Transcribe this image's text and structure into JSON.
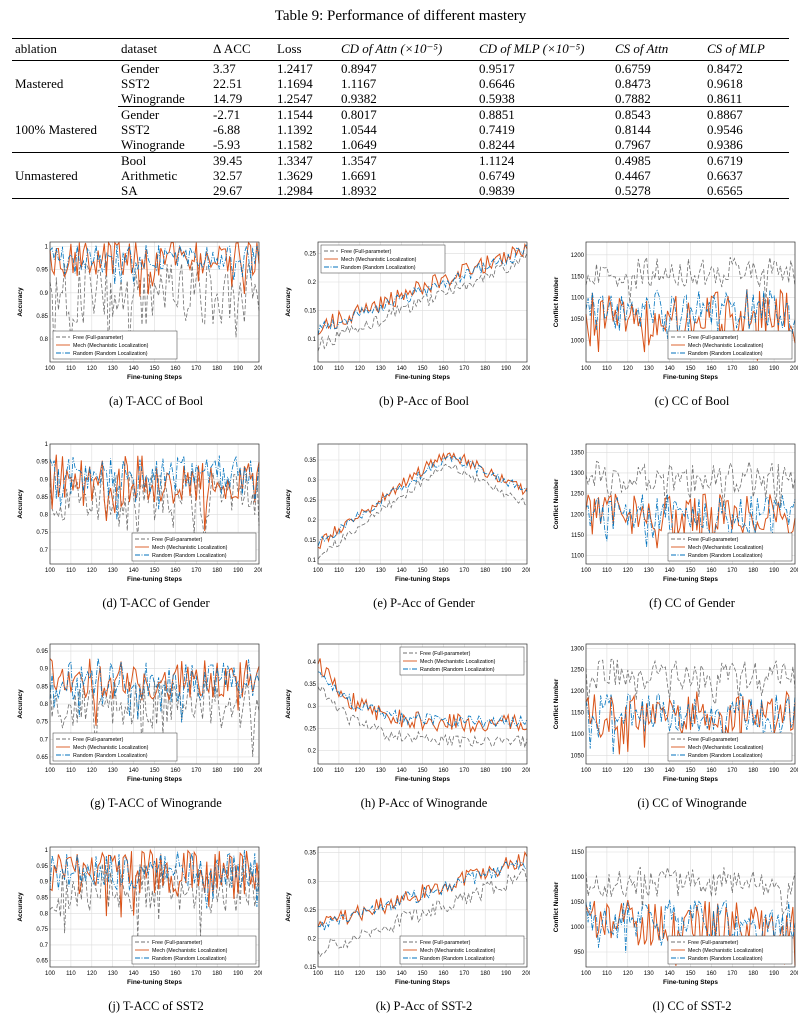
{
  "table": {
    "caption": "Table 9: Performance of different mastery",
    "headers": [
      "ablation",
      "dataset",
      "Δ ACC",
      "Loss",
      "CD of Attn (×10⁻⁵)",
      "CD of MLP (×10⁻⁵)",
      "CS of Attn",
      "CS of MLP"
    ],
    "groups": [
      {
        "name": "Mastered",
        "rows": [
          [
            "Gender",
            "3.37",
            "1.2417",
            "0.8947",
            "0.9517",
            "0.6759",
            "0.8472"
          ],
          [
            "SST2",
            "22.51",
            "1.1694",
            "1.1167",
            "0.6646",
            "0.8473",
            "0.9618"
          ],
          [
            "Winogrande",
            "14.79",
            "1.2547",
            "0.9382",
            "0.5938",
            "0.7882",
            "0.8611"
          ]
        ]
      },
      {
        "name": "100% Mastered",
        "rows": [
          [
            "Gender",
            "-2.71",
            "1.1544",
            "0.8017",
            "0.8851",
            "0.8543",
            "0.8867"
          ],
          [
            "SST2",
            "-6.88",
            "1.1392",
            "1.0544",
            "0.7419",
            "0.8144",
            "0.9546"
          ],
          [
            "Winogrande",
            "-5.93",
            "1.1582",
            "1.0649",
            "0.8244",
            "0.7967",
            "0.9386"
          ]
        ]
      },
      {
        "name": "Unmastered",
        "rows": [
          [
            "Bool",
            "39.45",
            "1.3347",
            "1.3547",
            "1.1124",
            "0.4985",
            "0.6719"
          ],
          [
            "Arithmetic",
            "32.57",
            "1.3629",
            "1.6691",
            "0.6749",
            "0.4467",
            "0.6637"
          ],
          [
            "SA",
            "29.67",
            "1.2984",
            "1.8932",
            "0.9839",
            "0.5278",
            "0.6565"
          ]
        ]
      }
    ]
  },
  "colors": {
    "free": "#707070",
    "mech": "#d95319",
    "random": "#0072bd"
  },
  "chart_data": [
    {
      "type": "line",
      "caption": "(a)  T-ACC of Bool",
      "xlabel": "Fine-tuning Steps",
      "ylabel": "Accuracy",
      "xlim": [
        100,
        200
      ],
      "ylim": [
        0.75,
        1.01
      ],
      "yticks": [
        "0.8",
        "0.85",
        "0.9",
        "0.95",
        "1"
      ],
      "grid": true,
      "legend": "bottom-left",
      "series": [
        {
          "name": "Free (Full-parameter)",
          "base": 0.9,
          "noise": 0.07
        },
        {
          "name": "Mech (Mechanistic Localization)",
          "base": 0.975,
          "noise": 0.04
        },
        {
          "name": "Random (Random Localization)",
          "base": 0.975,
          "noise": 0.03
        }
      ]
    },
    {
      "type": "line",
      "caption": "(b)  P-Acc of Bool",
      "xlabel": "Fine-tuning Steps",
      "ylabel": "Accuracy",
      "xlim": [
        100,
        200
      ],
      "ylim": [
        0.06,
        0.27
      ],
      "yticks": [
        "0.1",
        "0.15",
        "0.2",
        "0.25"
      ],
      "grid": true,
      "legend": "top-left",
      "series": [
        {
          "name": "Free (Full-parameter)",
          "start": 0.09,
          "end": 0.24,
          "noise": 0.012
        },
        {
          "name": "Mech (Mechanistic Localization)",
          "start": 0.12,
          "end": 0.26,
          "noise": 0.015
        },
        {
          "name": "Random (Random Localization)",
          "start": 0.115,
          "end": 0.255,
          "noise": 0.012
        }
      ]
    },
    {
      "type": "line",
      "caption": "(c)  CC of Bool",
      "xlabel": "Fine-tuning Steps",
      "ylabel": "Conflict Number",
      "xlim": [
        100,
        200
      ],
      "ylim": [
        950,
        1230
      ],
      "yticks": [
        "1000",
        "1050",
        "1100",
        "1150",
        "1200"
      ],
      "grid": true,
      "legend": "bottom-right",
      "series": [
        {
          "name": "Free (Full-parameter)",
          "base": 1160,
          "noise": 35
        },
        {
          "name": "Mech (Mechanistic Localization)",
          "base": 1065,
          "noise": 55
        },
        {
          "name": "Random (Random Localization)",
          "base": 1070,
          "noise": 50
        }
      ]
    },
    {
      "type": "line",
      "caption": "(d)  T-ACC of Gender",
      "xlabel": "Fine-tuning Steps",
      "ylabel": "Accuracy",
      "xlim": [
        100,
        200
      ],
      "ylim": [
        0.66,
        1.0
      ],
      "yticks": [
        "0.7",
        "0.75",
        "0.8",
        "0.85",
        "0.9",
        "0.95",
        "1"
      ],
      "grid": true,
      "legend": "bottom-right",
      "series": [
        {
          "name": "Free (Full-parameter)",
          "base": 0.84,
          "noise": 0.08
        },
        {
          "name": "Mech (Mechanistic Localization)",
          "base": 0.9,
          "noise": 0.07
        },
        {
          "name": "Random (Random Localization)",
          "base": 0.91,
          "noise": 0.06
        }
      ]
    },
    {
      "type": "line",
      "caption": "(e)  P-Acc of Gender",
      "xlabel": "Fine-tuning Steps",
      "ylabel": "Accuracy",
      "xlim": [
        100,
        200
      ],
      "ylim": [
        0.09,
        0.39
      ],
      "yticks": [
        "0.1",
        "0.15",
        "0.2",
        "0.25",
        "0.3",
        "0.35"
      ],
      "grid": true,
      "legend": "none",
      "series": [
        {
          "name": "Free (Full-parameter)",
          "shape": "hump",
          "start": 0.11,
          "peak": 0.34,
          "end": 0.24,
          "noise": 0.012
        },
        {
          "name": "Mech (Mechanistic Localization)",
          "shape": "hump",
          "start": 0.14,
          "peak": 0.37,
          "end": 0.27,
          "noise": 0.015
        },
        {
          "name": "Random (Random Localization)",
          "shape": "hump",
          "start": 0.14,
          "peak": 0.36,
          "end": 0.275,
          "noise": 0.012
        }
      ]
    },
    {
      "type": "line",
      "caption": "(f)  CC of Gender",
      "xlabel": "Fine-tuning Steps",
      "ylabel": "Conflict Number",
      "xlim": [
        100,
        200
      ],
      "ylim": [
        1080,
        1370
      ],
      "yticks": [
        "1100",
        "1150",
        "1200",
        "1250",
        "1300",
        "1350"
      ],
      "grid": true,
      "legend": "bottom-right",
      "series": [
        {
          "name": "Free (Full-parameter)",
          "base": 1290,
          "noise": 40
        },
        {
          "name": "Mech (Mechanistic Localization)",
          "base": 1200,
          "noise": 50
        },
        {
          "name": "Random (Random Localization)",
          "base": 1205,
          "noise": 45
        }
      ]
    },
    {
      "type": "line",
      "caption": "(g)  T-ACC of Winogrande",
      "xlabel": "Fine-tuning Steps",
      "ylabel": "Accuracy",
      "xlim": [
        100,
        200
      ],
      "ylim": [
        0.63,
        0.97
      ],
      "yticks": [
        "0.65",
        "0.7",
        "0.75",
        "0.8",
        "0.85",
        "0.9",
        "0.95"
      ],
      "grid": true,
      "legend": "bottom-left",
      "series": [
        {
          "name": "Free (Full-parameter)",
          "base": 0.8,
          "noise": 0.07
        },
        {
          "name": "Mech (Mechanistic Localization)",
          "base": 0.87,
          "noise": 0.06
        },
        {
          "name": "Random (Random Localization)",
          "base": 0.87,
          "noise": 0.06
        }
      ]
    },
    {
      "type": "line",
      "caption": "(h)  P-Acc of Winogrande",
      "xlabel": "Fine-tuning Steps",
      "ylabel": "Accuracy",
      "xlim": [
        100,
        200
      ],
      "ylim": [
        0.17,
        0.44
      ],
      "yticks": [
        "0.2",
        "0.25",
        "0.3",
        "0.35",
        "0.4"
      ],
      "grid": true,
      "legend": "top-right",
      "series": [
        {
          "name": "Free (Full-parameter)",
          "shape": "decay",
          "start": 0.35,
          "end": 0.22,
          "noise": 0.015
        },
        {
          "name": "Mech (Mechanistic Localization)",
          "shape": "decay",
          "start": 0.4,
          "end": 0.26,
          "noise": 0.02
        },
        {
          "name": "Random (Random Localization)",
          "shape": "decay",
          "start": 0.38,
          "end": 0.265,
          "noise": 0.015
        }
      ]
    },
    {
      "type": "line",
      "caption": "(i)  CC of Winogrande",
      "xlabel": "Fine-tuning Steps",
      "ylabel": "Conflict Number",
      "xlim": [
        100,
        200
      ],
      "ylim": [
        1030,
        1310
      ],
      "yticks": [
        "1050",
        "1100",
        "1150",
        "1200",
        "1250",
        "1300"
      ],
      "grid": true,
      "legend": "bottom-right",
      "series": [
        {
          "name": "Free (Full-parameter)",
          "base": 1240,
          "noise": 35
        },
        {
          "name": "Mech (Mechanistic Localization)",
          "base": 1150,
          "noise": 50
        },
        {
          "name": "Random (Random Localization)",
          "base": 1150,
          "noise": 45
        }
      ]
    },
    {
      "type": "line",
      "caption": "(j)  T-ACC of SST2",
      "xlabel": "Fine-tuning Steps",
      "ylabel": "Accuracy",
      "xlim": [
        100,
        200
      ],
      "ylim": [
        0.63,
        1.01
      ],
      "yticks": [
        "0.65",
        "0.7",
        "0.75",
        "0.8",
        "0.85",
        "0.9",
        "0.95",
        "1"
      ],
      "grid": true,
      "legend": "bottom-right",
      "series": [
        {
          "name": "Free (Full-parameter)",
          "base": 0.88,
          "noise": 0.08
        },
        {
          "name": "Mech (Mechanistic Localization)",
          "base": 0.93,
          "noise": 0.07
        },
        {
          "name": "Random (Random Localization)",
          "base": 0.94,
          "noise": 0.06
        }
      ]
    },
    {
      "type": "line",
      "caption": "(k)  P-Acc of SST-2",
      "xlabel": "Fine-tuning Steps",
      "ylabel": "Accuracy",
      "xlim": [
        100,
        200
      ],
      "ylim": [
        0.15,
        0.36
      ],
      "yticks": [
        "0.15",
        "0.2",
        "0.25",
        "0.3",
        "0.35"
      ],
      "grid": true,
      "legend": "bottom-right",
      "series": [
        {
          "name": "Free (Full-parameter)",
          "start": 0.18,
          "end": 0.31,
          "noise": 0.015
        },
        {
          "name": "Mech (Mechanistic Localization)",
          "start": 0.22,
          "end": 0.34,
          "noise": 0.015
        },
        {
          "name": "Random (Random Localization)",
          "start": 0.22,
          "end": 0.335,
          "noise": 0.012
        }
      ]
    },
    {
      "type": "line",
      "caption": "(l)  CC of SST-2",
      "xlabel": "Fine-tuning Steps",
      "ylabel": "Conflict Number",
      "xlim": [
        100,
        200
      ],
      "ylim": [
        920,
        1160
      ],
      "yticks": [
        "950",
        "1000",
        "1050",
        "1100",
        "1150"
      ],
      "grid": true,
      "legend": "bottom-right",
      "series": [
        {
          "name": "Free (Full-parameter)",
          "base": 1090,
          "noise": 30
        },
        {
          "name": "Mech (Mechanistic Localization)",
          "base": 1010,
          "noise": 45
        },
        {
          "name": "Random (Random Localization)",
          "base": 1015,
          "noise": 40
        }
      ]
    }
  ]
}
